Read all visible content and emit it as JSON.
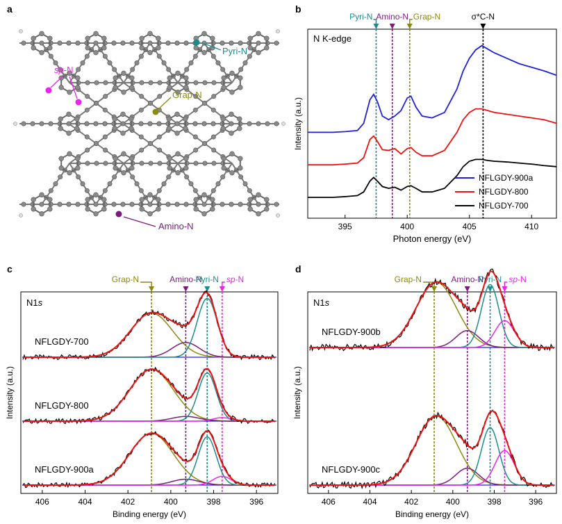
{
  "panels": {
    "a": {
      "label": "a",
      "annotations": {
        "pyri": "Pyri-N",
        "sp": "sp",
        "sp_suffix": "-N",
        "grap": "Grap-N",
        "amino": "Amino-N"
      }
    },
    "b": {
      "label": "b"
    },
    "c": {
      "label": "c"
    },
    "d": {
      "label": "d"
    }
  },
  "colors": {
    "blue": "#1f1fe0",
    "red": "#ee1111",
    "black": "#000000",
    "teal": "#1a8c8c",
    "purple": "#7a1a7a",
    "olive": "#8a8a10",
    "magenta": "#ee22ee",
    "node": "#888888"
  },
  "chart_data": [
    {
      "id": "b",
      "type": "line",
      "title": "N K-edge",
      "xlabel": "Photon energy (eV)",
      "ylabel": "Intensity (a.u.)",
      "xlim": [
        392,
        412
      ],
      "xticks": [
        395,
        400,
        405,
        410
      ],
      "markers": [
        {
          "label": "Pyri-N",
          "x": 397.5,
          "color_key": "teal"
        },
        {
          "label": "Amino-N",
          "x": 398.8,
          "color_key": "purple"
        },
        {
          "label": "Grap-N",
          "x": 400.2,
          "color_key": "olive"
        },
        {
          "label": "σ*C-N",
          "x": 406.1,
          "color_key": "black"
        }
      ],
      "legend": [
        "NFLGDY-900a",
        "NFLGDY-800",
        "NFLGDY-700"
      ],
      "series": [
        {
          "name": "NFLGDY-900a",
          "color_key": "blue",
          "offset": 1.8,
          "x": [
            392,
            393,
            394,
            395,
            396,
            396.5,
            397,
            397.3,
            397.6,
            398,
            398.5,
            399,
            399.5,
            400,
            400.3,
            400.7,
            401.2,
            402,
            403,
            404,
            404.5,
            405,
            405.5,
            406,
            406.5,
            407,
            408,
            409,
            410,
            411,
            412
          ],
          "y": [
            0.0,
            0.0,
            0.0,
            0.02,
            0.05,
            0.25,
            0.9,
            1.05,
            0.85,
            0.45,
            0.35,
            0.45,
            0.6,
            0.95,
            1.0,
            0.7,
            0.45,
            0.4,
            0.55,
            1.2,
            1.7,
            2.05,
            2.28,
            2.4,
            2.3,
            2.2,
            2.05,
            1.9,
            1.8,
            1.7,
            1.58
          ]
        },
        {
          "name": "NFLGDY-800",
          "color_key": "red",
          "offset": 0.9,
          "x": [
            392,
            393,
            394,
            395,
            396,
            396.5,
            397,
            397.3,
            397.6,
            398,
            398.5,
            399,
            399.5,
            400,
            400.3,
            400.7,
            401.2,
            402,
            403,
            404,
            404.5,
            405,
            405.5,
            406,
            406.5,
            407,
            408,
            409,
            410,
            411,
            412
          ],
          "y": [
            0.0,
            0.0,
            0.0,
            0.02,
            0.05,
            0.2,
            0.7,
            0.8,
            0.65,
            0.42,
            0.4,
            0.45,
            0.3,
            0.45,
            0.48,
            0.35,
            0.25,
            0.25,
            0.4,
            0.9,
            1.25,
            1.45,
            1.55,
            1.55,
            1.5,
            1.45,
            1.4,
            1.35,
            1.3,
            1.25,
            1.15
          ]
        },
        {
          "name": "NFLGDY-700",
          "color_key": "black",
          "offset": 0.0,
          "x": [
            392,
            393,
            394,
            395,
            396,
            396.5,
            397,
            397.3,
            397.6,
            398,
            398.5,
            399,
            399.5,
            400,
            400.3,
            400.7,
            401.2,
            402,
            403,
            404,
            404.5,
            405,
            405.5,
            406,
            406.5,
            407,
            408,
            409,
            410,
            411,
            412
          ],
          "y": [
            0.0,
            0.0,
            0.0,
            0.02,
            0.05,
            0.15,
            0.45,
            0.55,
            0.45,
            0.3,
            0.25,
            0.28,
            0.2,
            0.3,
            0.32,
            0.25,
            0.15,
            0.15,
            0.25,
            0.6,
            0.85,
            1.0,
            1.05,
            1.05,
            1.02,
            1.0,
            0.98,
            0.95,
            0.92,
            0.88,
            0.85
          ]
        }
      ]
    },
    {
      "id": "c",
      "type": "line",
      "title": "N1s",
      "xlabel": "Binding energy (eV)",
      "ylabel": "Intensity (a.u.)",
      "xlim": [
        407,
        395
      ],
      "xticks": [
        406,
        404,
        402,
        400,
        398,
        396
      ],
      "markers": [
        {
          "label": "Grap-N",
          "x": 400.9,
          "color_key": "olive"
        },
        {
          "label": "Amino-N",
          "x": 399.3,
          "color_key": "purple"
        },
        {
          "label": "Pyri-N",
          "x": 398.3,
          "color_key": "teal"
        },
        {
          "label": "sp-N",
          "x": 397.6,
          "color_key": "magenta"
        }
      ],
      "samples": [
        {
          "name": "NFLGDY-700",
          "offset": 2.0,
          "components": [
            {
              "label": "Grap-N",
              "center": 400.9,
              "amplitude": 0.75,
              "fwhm": 2.3
            },
            {
              "label": "Amino-N",
              "center": 399.3,
              "amplitude": 0.25,
              "fwhm": 1.5
            },
            {
              "label": "Pyri-N",
              "center": 398.3,
              "amplitude": 1.0,
              "fwhm": 1.1
            },
            {
              "label": "sp-N",
              "center": 397.6,
              "amplitude": 0.0,
              "fwhm": 1.0
            }
          ]
        },
        {
          "name": "NFLGDY-800",
          "offset": 1.0,
          "components": [
            {
              "label": "Grap-N",
              "center": 400.9,
              "amplitude": 0.88,
              "fwhm": 2.4
            },
            {
              "label": "Amino-N",
              "center": 399.3,
              "amplitude": 0.08,
              "fwhm": 1.5
            },
            {
              "label": "Pyri-N",
              "center": 398.3,
              "amplitude": 0.82,
              "fwhm": 1.0
            },
            {
              "label": "sp-N",
              "center": 397.6,
              "amplitude": 0.06,
              "fwhm": 1.0
            }
          ]
        },
        {
          "name": "NFLGDY-900a",
          "offset": 0.0,
          "components": [
            {
              "label": "Grap-N",
              "center": 400.9,
              "amplitude": 0.88,
              "fwhm": 2.4
            },
            {
              "label": "Amino-N",
              "center": 399.3,
              "amplitude": 0.1,
              "fwhm": 1.5
            },
            {
              "label": "Pyri-N",
              "center": 398.3,
              "amplitude": 0.82,
              "fwhm": 1.0
            },
            {
              "label": "sp-N",
              "center": 397.6,
              "amplitude": 0.15,
              "fwhm": 1.0
            }
          ]
        }
      ]
    },
    {
      "id": "d",
      "type": "line",
      "title": "N1s",
      "xlabel": "Binding energy (eV)",
      "ylabel": "Intensity (a.u.)",
      "xlim": [
        407,
        395
      ],
      "xticks": [
        406,
        404,
        402,
        400,
        398,
        396
      ],
      "markers": [
        {
          "label": "Grap-N",
          "x": 400.9,
          "color_key": "olive"
        },
        {
          "label": "Amino-N",
          "x": 399.3,
          "color_key": "purple"
        },
        {
          "label": "Pyri-N",
          "x": 398.2,
          "color_key": "teal"
        },
        {
          "label": "sp-N",
          "x": 397.5,
          "color_key": "magenta"
        }
      ],
      "samples": [
        {
          "name": "NFLGDY-900b",
          "offset": 1.65,
          "components": [
            {
              "label": "Grap-N",
              "center": 400.8,
              "amplitude": 0.85,
              "fwhm": 2.3
            },
            {
              "label": "Amino-N",
              "center": 399.3,
              "amplitude": 0.22,
              "fwhm": 1.3
            },
            {
              "label": "Pyri-N",
              "center": 398.2,
              "amplitude": 0.82,
              "fwhm": 1.0
            },
            {
              "label": "sp-N",
              "center": 397.5,
              "amplitude": 0.35,
              "fwhm": 1.1
            }
          ]
        },
        {
          "name": "NFLGDY-900c",
          "offset": 0.0,
          "components": [
            {
              "label": "Grap-N",
              "center": 400.8,
              "amplitude": 0.9,
              "fwhm": 2.3
            },
            {
              "label": "Amino-N",
              "center": 399.3,
              "amplitude": 0.22,
              "fwhm": 1.3
            },
            {
              "label": "Pyri-N",
              "center": 398.2,
              "amplitude": 0.75,
              "fwhm": 1.0
            },
            {
              "label": "sp-N",
              "center": 397.5,
              "amplitude": 0.45,
              "fwhm": 1.1
            }
          ]
        }
      ]
    }
  ]
}
